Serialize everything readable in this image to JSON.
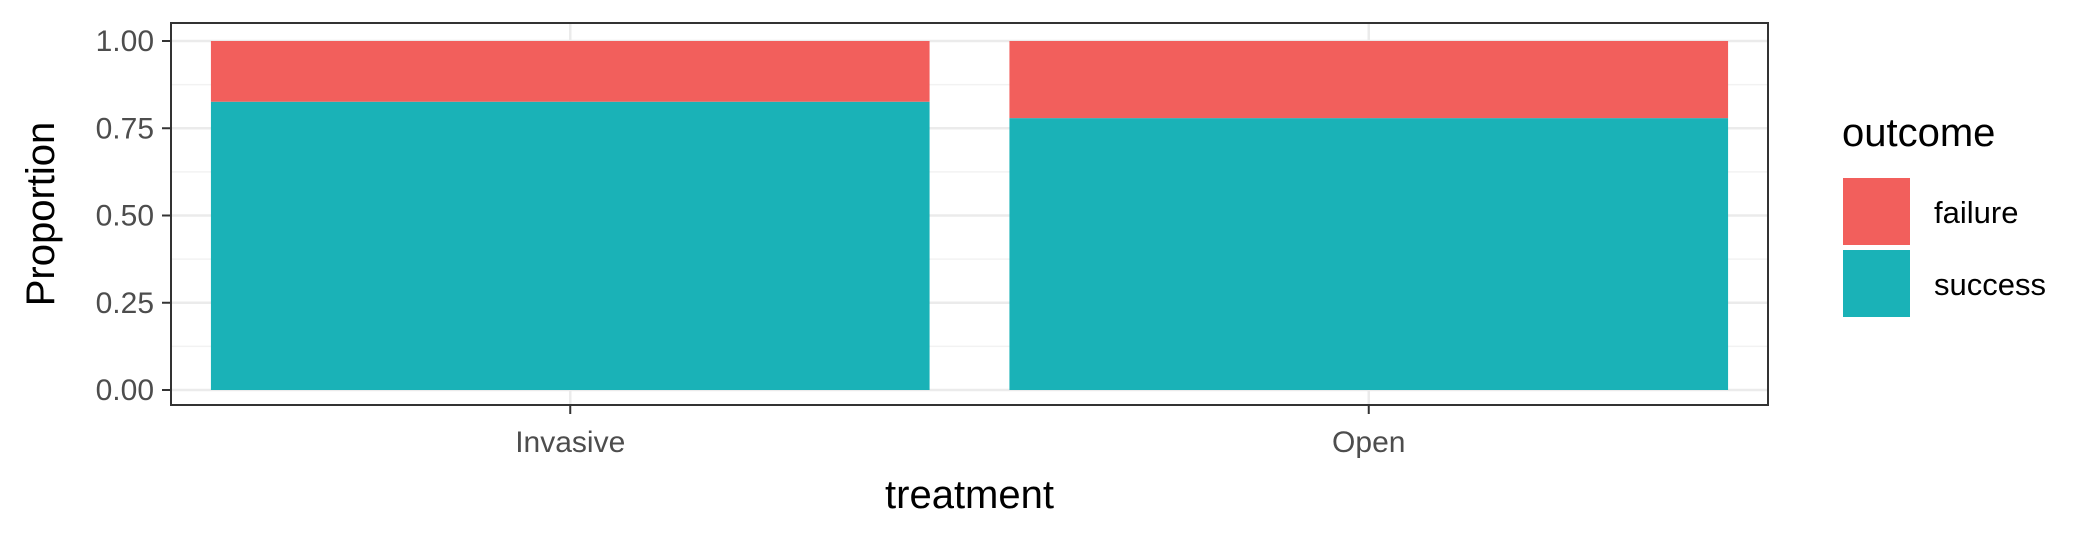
{
  "chart_data": {
    "type": "bar",
    "stacked": true,
    "categories": [
      "Invasive",
      "Open"
    ],
    "series": [
      {
        "name": "success",
        "values": [
          0.826,
          0.779
        ],
        "color": "#1AB2B7"
      },
      {
        "name": "failure",
        "values": [
          0.174,
          0.221
        ],
        "color": "#F25F5C"
      }
    ],
    "xlabel": "treatment",
    "ylabel": "Proportion",
    "ylim": [
      0,
      1
    ],
    "yticks": [
      0,
      0.25,
      0.5,
      0.75,
      1
    ],
    "ytick_labels": [
      "0.00",
      "0.25",
      "0.50",
      "0.75",
      "1.00"
    ],
    "grid": true,
    "legend": {
      "title": "outcome",
      "position": "right",
      "entries": [
        {
          "label": "failure",
          "color": "#F25F5C"
        },
        {
          "label": "success",
          "color": "#1AB2B7"
        }
      ]
    }
  }
}
